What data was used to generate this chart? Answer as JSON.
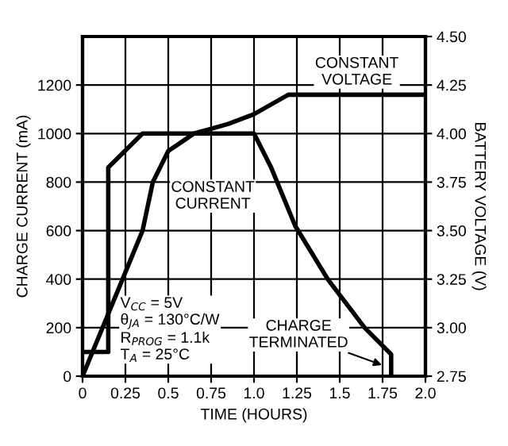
{
  "chart_data": {
    "type": "line",
    "xlabel": "TIME (HOURS)",
    "ylabel": "CHARGE CURRENT (mA)",
    "y2label": "BATTERY VOLTAGE (V)",
    "series": [
      {
        "color": "#000000",
        "x": [
          0,
          0.15,
          0.15,
          0.35,
          1.0,
          1.1,
          1.24,
          1.43,
          1.645,
          1.8,
          1.8
        ],
        "values": [
          100,
          100,
          860,
          1000,
          1000,
          860,
          620,
          400,
          200,
          90,
          0
        ]
      },
      {
        "color": "#000000",
        "axis": "y2",
        "x": [
          0,
          0.35,
          0.41,
          0.5,
          0.6,
          0.65,
          0.85,
          1.0,
          1.1,
          1.2,
          2.0
        ],
        "values": [
          2.75,
          3.5,
          3.75,
          3.91,
          3.97,
          4.0,
          4.05,
          4.1,
          4.15,
          4.2,
          4.2
        ]
      }
    ],
    "xlim": [
      0,
      2
    ],
    "xticks": [
      0,
      0.25,
      0.5,
      0.75,
      {
        "value": 1,
        "label": "1.0"
      },
      1.25,
      1.5,
      1.75,
      {
        "value": 2,
        "label": "2.0"
      }
    ],
    "ylim": [
      0,
      1400
    ],
    "yticks": [
      0,
      200,
      400,
      600,
      800,
      1000,
      1200
    ],
    "y2lim": [
      2.75,
      4.5
    ],
    "y2ticks": [
      2.75,
      {
        "value": 3,
        "label": "3.00"
      },
      3.25,
      {
        "value": 3.5,
        "label": "3.50"
      },
      3.75,
      {
        "value": 4,
        "label": "4.00"
      },
      4.25,
      {
        "value": 4.5,
        "label": "4.50"
      }
    ],
    "grid": true,
    "line_style": "solid",
    "marker": "none",
    "annotations": [
      "CONSTANT\nVOLTAGE",
      "CONSTANT\nCURRENT",
      "V$_{CC}$ = 5V\nθ$_{JA}$ = 130°C/W\nR$_{PROG}$ = 1.1k\nT$_{A}$ = 25°C",
      {
        "text": "CHARGE\nTERMINATED",
        "x": 1.77,
        "y": 40
      }
    ]
  }
}
